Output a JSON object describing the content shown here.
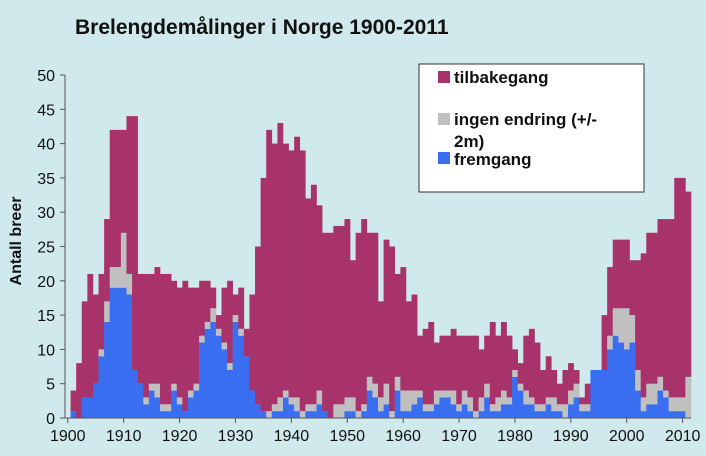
{
  "chart_data": {
    "type": "bar",
    "stacked": true,
    "title": "Brelengdemålinger i Norge 1900-2011",
    "xlabel": "",
    "ylabel": "Antall breer",
    "xlim": [
      1900,
      2011
    ],
    "ylim": [
      0,
      50
    ],
    "yticks": [
      "0",
      "5",
      "10",
      "15",
      "20",
      "25",
      "30",
      "35",
      "40",
      "45",
      "50"
    ],
    "xticks": [
      "1900",
      "1910",
      "1920",
      "1930",
      "1940",
      "1950",
      "1960",
      "1970",
      "1980",
      "1990",
      "2000",
      "2010"
    ],
    "grid": false,
    "legend_position": "top-right",
    "x": [
      1900,
      1901,
      1902,
      1903,
      1904,
      1905,
      1906,
      1907,
      1908,
      1909,
      1910,
      1911,
      1912,
      1913,
      1914,
      1915,
      1916,
      1917,
      1918,
      1919,
      1920,
      1921,
      1922,
      1923,
      1924,
      1925,
      1926,
      1927,
      1928,
      1929,
      1930,
      1931,
      1932,
      1933,
      1934,
      1935,
      1936,
      1937,
      1938,
      1939,
      1940,
      1941,
      1942,
      1943,
      1944,
      1945,
      1946,
      1947,
      1948,
      1949,
      1950,
      1951,
      1952,
      1953,
      1954,
      1955,
      1956,
      1957,
      1958,
      1959,
      1960,
      1961,
      1962,
      1963,
      1964,
      1965,
      1966,
      1967,
      1968,
      1969,
      1970,
      1971,
      1972,
      1973,
      1974,
      1975,
      1976,
      1977,
      1978,
      1979,
      1980,
      1981,
      1982,
      1983,
      1984,
      1985,
      1986,
      1987,
      1988,
      1989,
      1990,
      1991,
      1992,
      1993,
      1994,
      1995,
      1996,
      1997,
      1998,
      1999,
      2000,
      2001,
      2002,
      2003,
      2004,
      2005,
      2006,
      2007,
      2008,
      2009,
      2010,
      2011
    ],
    "series": [
      {
        "name": "fremgang",
        "color": "#3a6ef0",
        "values": [
          0,
          1,
          0,
          3,
          3,
          5,
          9,
          14,
          19,
          19,
          19,
          18,
          7,
          5,
          2,
          4,
          3,
          1,
          1,
          4,
          2,
          1,
          3,
          4,
          11,
          13,
          14,
          12,
          10,
          7,
          14,
          12,
          9,
          4,
          2,
          1,
          0,
          1,
          1,
          3,
          2,
          1,
          0,
          1,
          1,
          2,
          1,
          0,
          0,
          0,
          1,
          1,
          0,
          1,
          4,
          3,
          1,
          2,
          0,
          4,
          1,
          1,
          2,
          3,
          1,
          1,
          2,
          3,
          3,
          2,
          1,
          2,
          1,
          0,
          1,
          3,
          1,
          1,
          2,
          2,
          6,
          4,
          2,
          2,
          1,
          1,
          2,
          1,
          1,
          0,
          2,
          3,
          1,
          1,
          7,
          7,
          7,
          10,
          12,
          11,
          10,
          11,
          4,
          1,
          2,
          2,
          4,
          3,
          1,
          1,
          1,
          0
        ]
      },
      {
        "name": "ingen endring (+/-2m)",
        "color": "#c0c0c0",
        "values": [
          0,
          0,
          0,
          0,
          0,
          0,
          1,
          3,
          3,
          3,
          8,
          3,
          0,
          0,
          1,
          1,
          2,
          1,
          1,
          1,
          1,
          0,
          1,
          1,
          1,
          1,
          2,
          1,
          1,
          1,
          1,
          1,
          0,
          0,
          0,
          0,
          1,
          1,
          2,
          1,
          1,
          2,
          1,
          1,
          1,
          2,
          0,
          0,
          2,
          2,
          2,
          2,
          1,
          1,
          2,
          2,
          2,
          3,
          1,
          2,
          3,
          3,
          2,
          1,
          1,
          1,
          2,
          1,
          1,
          2,
          1,
          2,
          2,
          1,
          2,
          2,
          1,
          2,
          2,
          1,
          1,
          1,
          2,
          1,
          1,
          1,
          1,
          2,
          1,
          2,
          2,
          2,
          1,
          1,
          0,
          0,
          0,
          2,
          4,
          5,
          6,
          4,
          3,
          2,
          3,
          3,
          2,
          1,
          2,
          2,
          2,
          6
        ]
      },
      {
        "name": "tilbakegang",
        "color": "#a8336a",
        "values": [
          0,
          3,
          8,
          14,
          18,
          13,
          11,
          12,
          20,
          20,
          15,
          23,
          37,
          16,
          18,
          16,
          17,
          19,
          19,
          15,
          16,
          19,
          15,
          14,
          8,
          6,
          3,
          2,
          8,
          12,
          3,
          6,
          4,
          14,
          23,
          34,
          41,
          38,
          40,
          36,
          36,
          38,
          38,
          30,
          32,
          27,
          26,
          27,
          26,
          26,
          26,
          20,
          26,
          27,
          21,
          22,
          14,
          21,
          24,
          15,
          18,
          13,
          14,
          8,
          11,
          12,
          7,
          8,
          8,
          9,
          10,
          8,
          9,
          11,
          7,
          7,
          12,
          9,
          10,
          9,
          3,
          3,
          8,
          10,
          9,
          5,
          6,
          4,
          3,
          5,
          4,
          2,
          1,
          3,
          0,
          0,
          8,
          10,
          10,
          10,
          10,
          8,
          16,
          21,
          22,
          22,
          23,
          25,
          26,
          32,
          32,
          27
        ]
      }
    ]
  },
  "legend": {
    "items": [
      {
        "label": "tilbakegang",
        "color": "#a8336a"
      },
      {
        "label": "ingen endring (+/-",
        "color": "#c0c0c0"
      },
      {
        "label": "2m)"
      },
      {
        "label": "fremgang",
        "color": "#3a6ef0"
      }
    ]
  }
}
